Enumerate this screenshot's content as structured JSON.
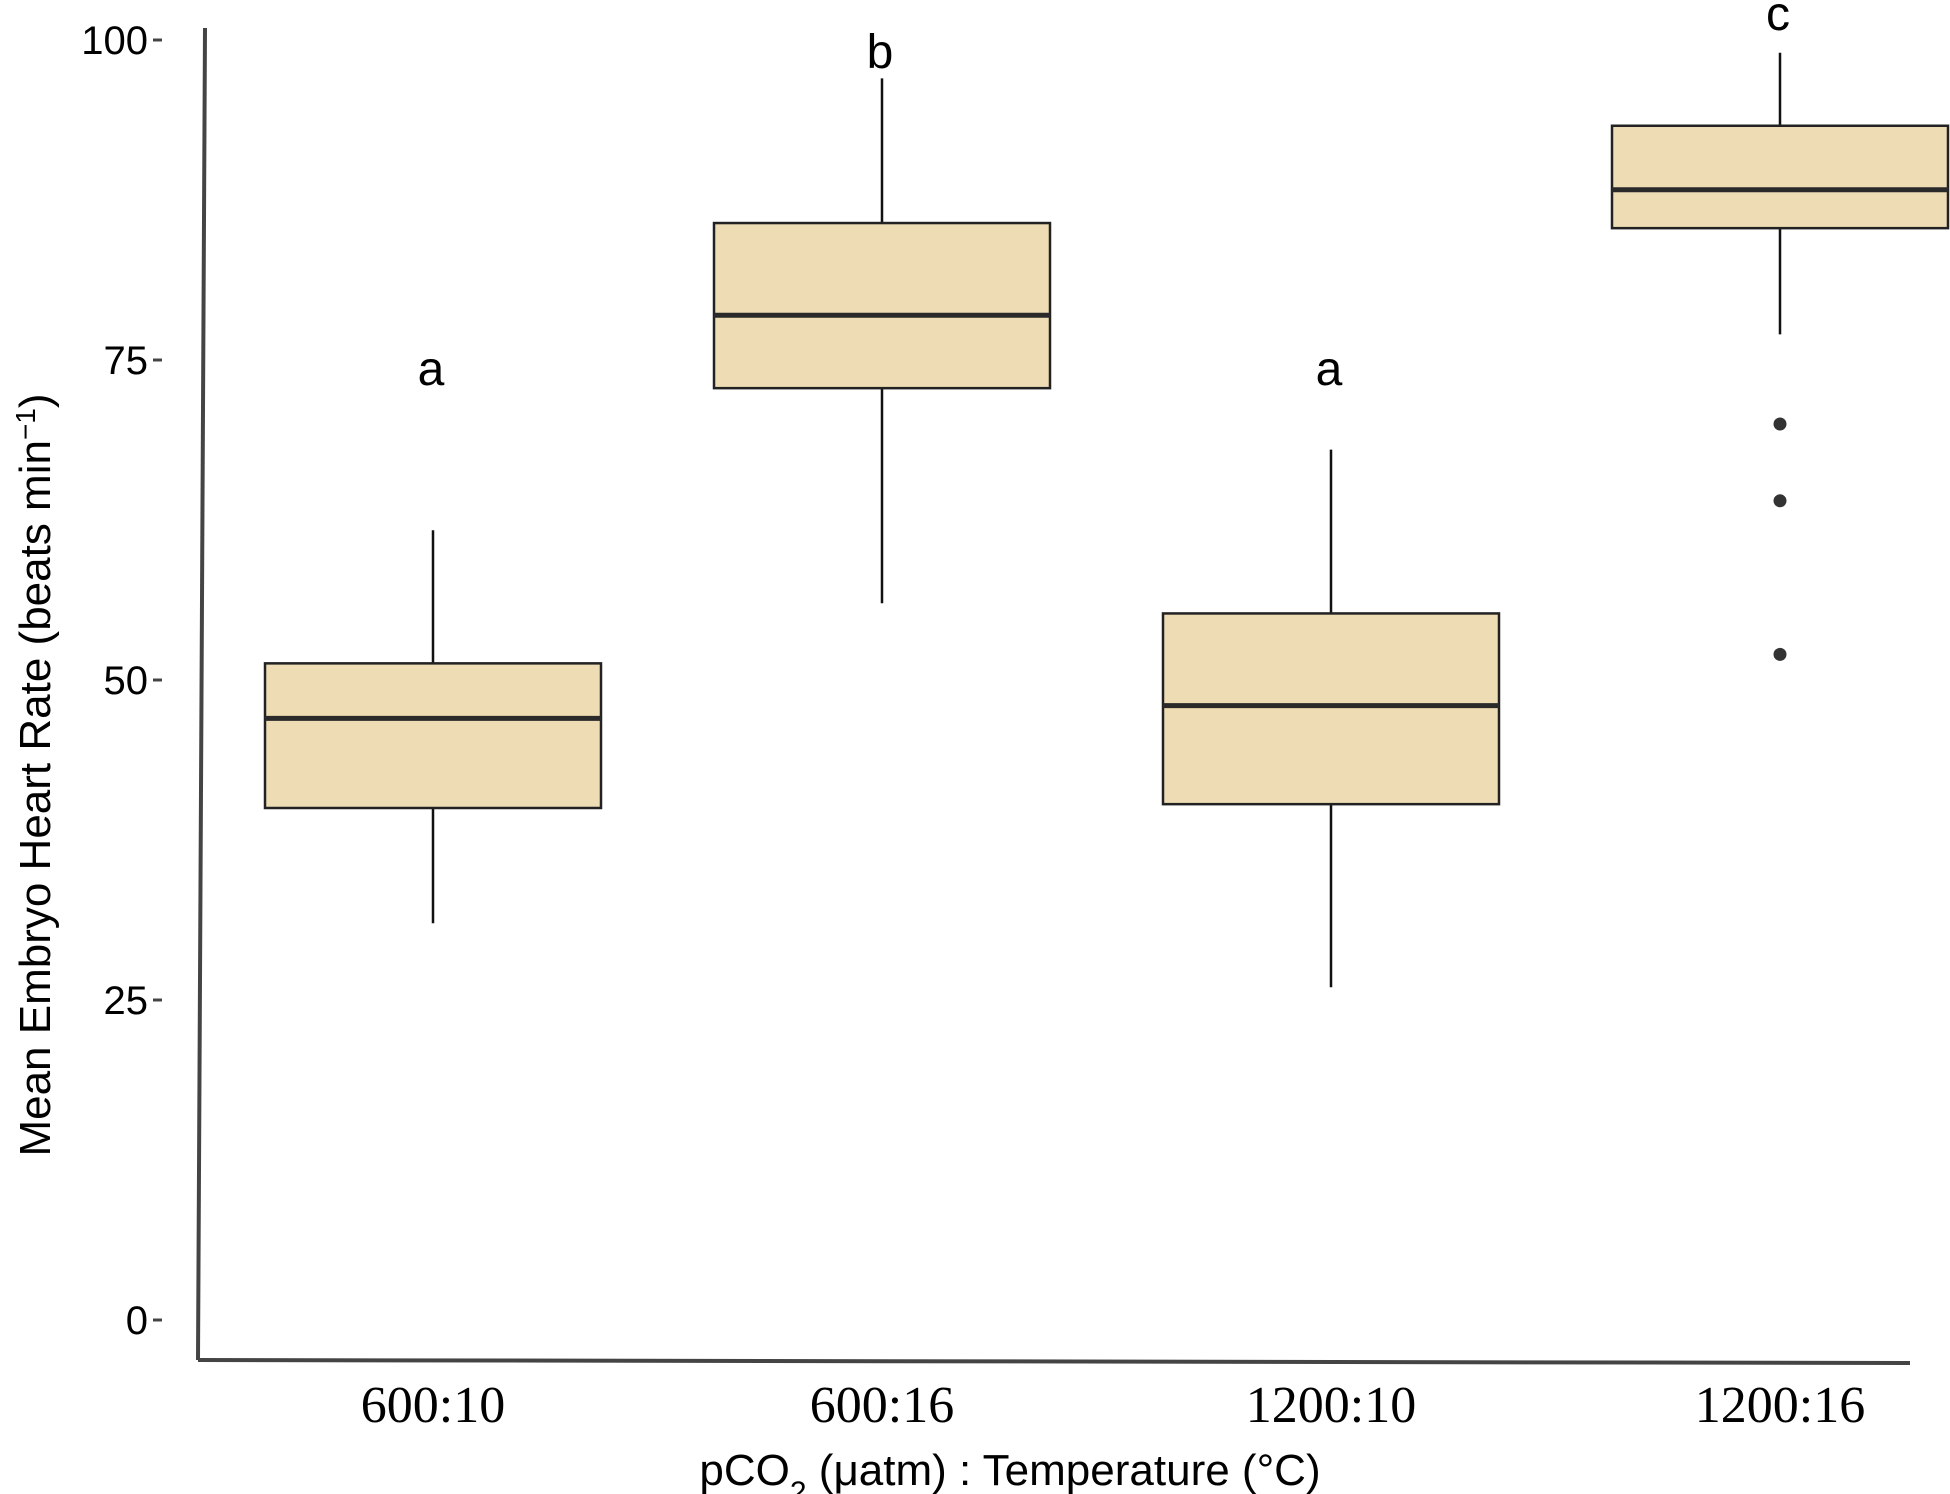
{
  "chart_data": {
    "type": "box",
    "categories": [
      "600:10",
      "600:16",
      "1200:10",
      "1200:16"
    ],
    "ylim": [
      0,
      100
    ],
    "yticks": [
      0,
      25,
      50,
      75,
      100
    ],
    "ylabel": {
      "main": "Mean Embryo Heart Rate (beats  min",
      "sup": "−1",
      "end": ")"
    },
    "xlabel": {
      "pre": "pCO",
      "sub": "2",
      "mid": " (μatm) : Temperature (°C)"
    },
    "boxes": [
      {
        "category": "600:10",
        "whisker_low": 31,
        "q1": 40,
        "median": 47,
        "q3": 51.3,
        "whisker_high": 61.7,
        "outliers": [],
        "letter": "a"
      },
      {
        "category": "600:16",
        "whisker_low": 56,
        "q1": 72.8,
        "median": 78.5,
        "q3": 85.7,
        "whisker_high": 97,
        "outliers": [],
        "letter": "b"
      },
      {
        "category": "1200:10",
        "whisker_low": 26,
        "q1": 40.3,
        "median": 48,
        "q3": 55.2,
        "whisker_high": 68,
        "outliers": [],
        "letter": "a"
      },
      {
        "category": "1200:16",
        "whisker_low": 77,
        "q1": 85.3,
        "median": 88.3,
        "q3": 93.3,
        "whisker_high": 99,
        "outliers": [
          70,
          64,
          52
        ],
        "letter": "c"
      }
    ],
    "colors": {
      "box_fill": "#eedcb4",
      "box_stroke": "#222222",
      "median": "#2a2a2a",
      "axis": "#444444"
    }
  }
}
